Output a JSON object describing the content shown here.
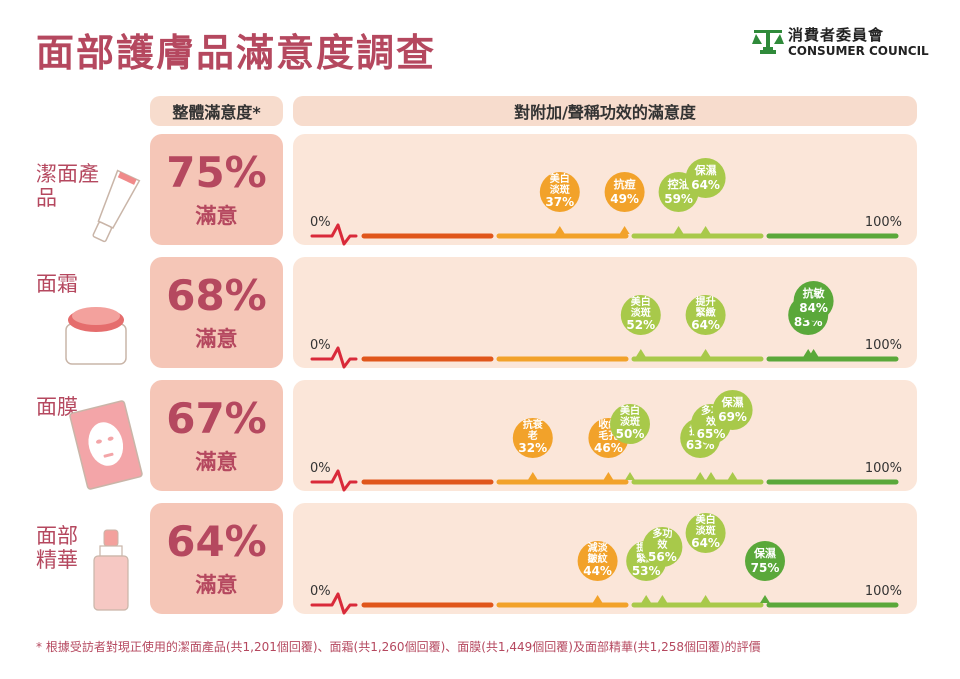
{
  "title": "面部護膚品滿意度調查",
  "logo": {
    "cn": "消費者委員會",
    "en": "CONSUMER COUNCIL"
  },
  "headers": {
    "overall": "整體滿意度*",
    "specific": "對附加/聲稱功效的滿意度"
  },
  "footnote": "* 根據受訪者對現正使用的潔面產品(共1,201個回覆)、面霜(共1,260個回覆)、面膜(共1,449個回覆)及面部精華(共1,258個回覆)的評價",
  "axis": {
    "min_label": "0%",
    "max_label": "100%"
  },
  "colors": {
    "seg1": "#e0561b",
    "seg2": "#f2a22a",
    "seg3": "#a8c94a",
    "seg4": "#5aa83a",
    "accent": "#b5485f"
  },
  "chart_data": {
    "type": "scatter",
    "xlim": [
      0,
      100
    ],
    "rows": [
      {
        "category": "潔面產品",
        "overall_pct": "75%",
        "overall_label": "滿意",
        "points": [
          {
            "label": "美白淡斑",
            "value": 37
          },
          {
            "label": "抗痘",
            "value": 49
          },
          {
            "label": "控油",
            "value": 59
          },
          {
            "label": "保濕",
            "value": 64
          }
        ]
      },
      {
        "category": "面霜",
        "overall_pct": "68%",
        "overall_label": "滿意",
        "points": [
          {
            "label": "美白淡斑",
            "value": 52
          },
          {
            "label": "提升緊緻",
            "value": 64
          },
          {
            "label": "保濕",
            "value": 83
          },
          {
            "label": "抗敏",
            "value": 84
          }
        ]
      },
      {
        "category": "面膜",
        "overall_pct": "67%",
        "overall_label": "滿意",
        "points": [
          {
            "label": "抗衰老",
            "value": 32
          },
          {
            "label": "收細毛孔",
            "value": 46
          },
          {
            "label": "美白淡斑",
            "value": 50
          },
          {
            "label": "控油",
            "value": 63
          },
          {
            "label": "多功效",
            "value": 65
          },
          {
            "label": "保濕",
            "value": 69
          }
        ]
      },
      {
        "category": "面部精華",
        "overall_pct": "64%",
        "overall_label": "滿意",
        "points": [
          {
            "label": "減淡皺紋",
            "value": 44
          },
          {
            "label": "提升緊緻",
            "value": 53
          },
          {
            "label": "多功效",
            "value": 56
          },
          {
            "label": "美白淡斑",
            "value": 64
          },
          {
            "label": "保濕",
            "value": 75
          }
        ]
      }
    ]
  }
}
